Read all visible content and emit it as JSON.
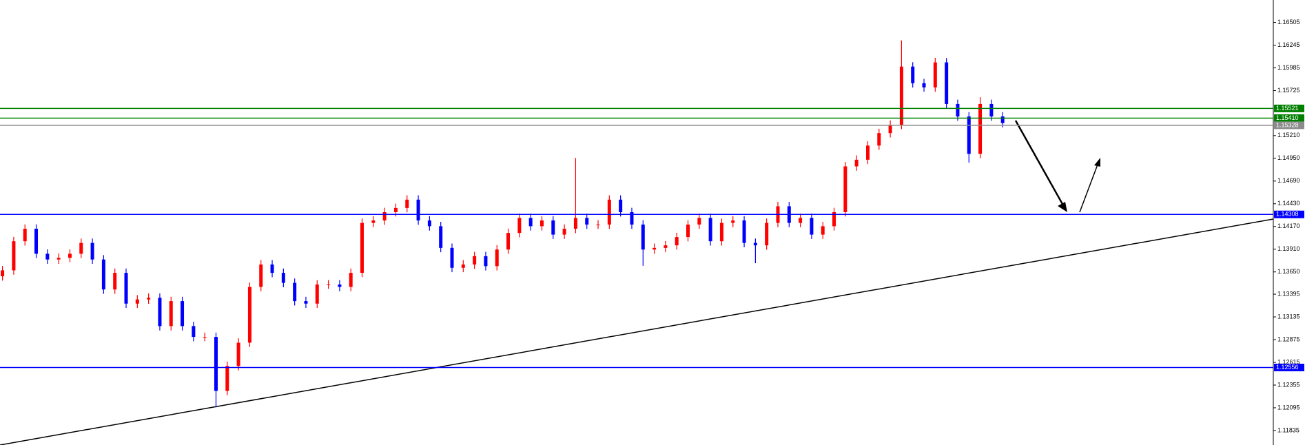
{
  "chart_data": {
    "type": "candlestick",
    "up_color": "#ff0000",
    "down_color": "#0000ff",
    "ylim": [
      1.11669,
      1.16762
    ],
    "yticks": [
      1.16505,
      1.16245,
      1.15985,
      1.15725,
      {
        "value": 1.1521,
        "label": "1.15210"
      },
      {
        "value": 1.1495,
        "label": "1.14950"
      },
      {
        "value": 1.1469,
        "label": "1.14690"
      },
      {
        "value": 1.1443,
        "label": "1.14430"
      },
      {
        "value": 1.1417,
        "label": "1.14170"
      },
      {
        "value": 1.1391,
        "label": "1.13910"
      },
      {
        "value": 1.1365,
        "label": "1.13650"
      },
      1.13395,
      1.13135,
      1.12875,
      1.12615,
      1.12355,
      1.12095,
      1.11835
    ],
    "levels": [
      {
        "value": 1.15521,
        "label": "1.15521",
        "color": "#008000"
      },
      {
        "value": 1.1541,
        "label": "1.15410",
        "color": "#008000"
      },
      {
        "value": 1.15328,
        "label": "1.15328",
        "color": "#8c8c8c"
      },
      {
        "value": 1.14308,
        "label": "1.14308",
        "color": "#0000ff"
      },
      {
        "value": 1.12556,
        "label": "1.12556",
        "color": "#0000ff"
      }
    ],
    "candles": [
      [
        1.136,
        1.13718,
        1.1355,
        1.13668
      ],
      [
        1.13668,
        1.14051,
        1.13618,
        1.14001
      ],
      [
        1.14001,
        1.14194,
        1.13951,
        1.14144
      ],
      [
        1.14144,
        1.14194,
        1.13808,
        1.13858
      ],
      [
        1.13858,
        1.13908,
        1.13742,
        1.13792
      ],
      [
        1.13792,
        1.13861,
        1.13742,
        1.13811
      ],
      [
        1.13811,
        1.13908,
        1.13761,
        1.13858
      ],
      [
        1.13858,
        1.14032,
        1.13808,
        1.13982
      ],
      [
        1.13982,
        1.14032,
        1.13742,
        1.13792
      ],
      [
        1.13792,
        1.13842,
        1.13399,
        1.13449
      ],
      [
        1.13449,
        1.13689,
        1.13399,
        1.13639
      ],
      [
        1.13639,
        1.13689,
        1.13237,
        1.13287
      ],
      [
        1.13287,
        1.13385,
        1.13237,
        1.13335
      ],
      [
        1.13335,
        1.13404,
        1.13285,
        1.13354
      ],
      [
        1.13354,
        1.13404,
        1.1298,
        1.1303
      ],
      [
        1.1303,
        1.13366,
        1.1298,
        1.13316
      ],
      [
        1.13316,
        1.13366,
        1.1298,
        1.1303
      ],
      [
        1.1303,
        1.1308,
        1.12856,
        1.12906
      ],
      [
        1.12906,
        1.12956,
        1.12856,
        1.12906
      ],
      [
        1.12906,
        1.12956,
        1.121,
        1.12288
      ],
      [
        1.12288,
        1.12623,
        1.12238,
        1.12573
      ],
      [
        1.12573,
        1.1289,
        1.12523,
        1.1284
      ],
      [
        1.1284,
        1.13528,
        1.1279,
        1.13478
      ],
      [
        1.13478,
        1.13785,
        1.13428,
        1.13735
      ],
      [
        1.13735,
        1.13785,
        1.13589,
        1.13639
      ],
      [
        1.13639,
        1.13689,
        1.13475,
        1.13525
      ],
      [
        1.13525,
        1.13575,
        1.13266,
        1.13316
      ],
      [
        1.13316,
        1.13366,
        1.13237,
        1.13287
      ],
      [
        1.13287,
        1.13556,
        1.13237,
        1.13506
      ],
      [
        1.13506,
        1.13556,
        1.13456,
        1.13506
      ],
      [
        1.13506,
        1.13556,
        1.13428,
        1.13478
      ],
      [
        1.13478,
        1.13689,
        1.13428,
        1.13639
      ],
      [
        1.13639,
        1.14261,
        1.13589,
        1.14211
      ],
      [
        1.14211,
        1.14289,
        1.14161,
        1.14239
      ],
      [
        1.14239,
        1.14384,
        1.14189,
        1.14334
      ],
      [
        1.14334,
        1.14432,
        1.14284,
        1.14382
      ],
      [
        1.14382,
        1.14527,
        1.14332,
        1.14477
      ],
      [
        1.14477,
        1.14527,
        1.14189,
        1.14239
      ],
      [
        1.14239,
        1.14289,
        1.14123,
        1.14173
      ],
      [
        1.14173,
        1.14223,
        1.13875,
        1.13925
      ],
      [
        1.13925,
        1.13975,
        1.13647,
        1.13697
      ],
      [
        1.13697,
        1.13785,
        1.13647,
        1.13735
      ],
      [
        1.13735,
        1.1388,
        1.13685,
        1.1383
      ],
      [
        1.1383,
        1.1388,
        1.13666,
        1.13716
      ],
      [
        1.13716,
        1.13956,
        1.13666,
        1.13906
      ],
      [
        1.13906,
        1.14146,
        1.13856,
        1.14096
      ],
      [
        1.14096,
        1.14318,
        1.14046,
        1.14268
      ],
      [
        1.14268,
        1.14318,
        1.14123,
        1.14173
      ],
      [
        1.14173,
        1.14289,
        1.14123,
        1.14239
      ],
      [
        1.14239,
        1.14289,
        1.14027,
        1.14077
      ],
      [
        1.14077,
        1.14194,
        1.14027,
        1.14144
      ],
      [
        1.14144,
        1.14953,
        1.14094,
        1.14268
      ],
      [
        1.14268,
        1.14318,
        1.14142,
        1.14192
      ],
      [
        1.14192,
        1.14242,
        1.14142,
        1.14192
      ],
      [
        1.14192,
        1.14527,
        1.14142,
        1.14477
      ],
      [
        1.14477,
        1.14527,
        1.14284,
        1.14334
      ],
      [
        1.14334,
        1.14384,
        1.14142,
        1.14192
      ],
      [
        1.14192,
        1.14242,
        1.1372,
        1.13906
      ],
      [
        1.13906,
        1.13975,
        1.13856,
        1.13925
      ],
      [
        1.13925,
        1.14004,
        1.13875,
        1.13954
      ],
      [
        1.13954,
        1.14099,
        1.13904,
        1.14049
      ],
      [
        1.14049,
        1.14242,
        1.13999,
        1.14192
      ],
      [
        1.14192,
        1.14318,
        1.14142,
        1.14268
      ],
      [
        1.14268,
        1.14318,
        1.13951,
        1.14001
      ],
      [
        1.14001,
        1.14261,
        1.13951,
        1.14211
      ],
      [
        1.14211,
        1.14289,
        1.14161,
        1.14239
      ],
      [
        1.14239,
        1.14289,
        1.13932,
        1.13982
      ],
      [
        1.13982,
        1.14032,
        1.1375,
        1.13954
      ],
      [
        1.13954,
        1.14261,
        1.13904,
        1.14211
      ],
      [
        1.14211,
        1.14451,
        1.14161,
        1.14401
      ],
      [
        1.14401,
        1.14451,
        1.14161,
        1.14211
      ],
      [
        1.14211,
        1.14318,
        1.14161,
        1.14268
      ],
      [
        1.14268,
        1.14318,
        1.14027,
        1.14077
      ],
      [
        1.14077,
        1.14223,
        1.14027,
        1.14173
      ],
      [
        1.14173,
        1.14384,
        1.14123,
        1.14334
      ],
      [
        1.14334,
        1.14908,
        1.14284,
        1.14858
      ],
      [
        1.14858,
        1.14984,
        1.14808,
        1.14934
      ],
      [
        1.14934,
        1.15146,
        1.14884,
        1.15096
      ],
      [
        1.15096,
        1.15289,
        1.15046,
        1.15239
      ],
      [
        1.15239,
        1.15384,
        1.15189,
        1.15334
      ],
      [
        1.15334,
        1.163,
        1.15284,
        1.16
      ],
      [
        1.16,
        1.1605,
        1.1576,
        1.1581
      ],
      [
        1.1581,
        1.1586,
        1.15712,
        1.15762
      ],
      [
        1.15762,
        1.161,
        1.15712,
        1.16048
      ],
      [
        1.16048,
        1.16098,
        1.15522,
        1.15572
      ],
      [
        1.15572,
        1.15622,
        1.15379,
        1.15429
      ],
      [
        1.15429,
        1.15479,
        1.149,
        1.15001
      ],
      [
        1.15001,
        1.1565,
        1.14951,
        1.15572
      ],
      [
        1.15572,
        1.15622,
        1.15379,
        1.15429
      ],
      [
        1.15429,
        1.15479,
        1.15303,
        1.15353
      ]
    ]
  }
}
